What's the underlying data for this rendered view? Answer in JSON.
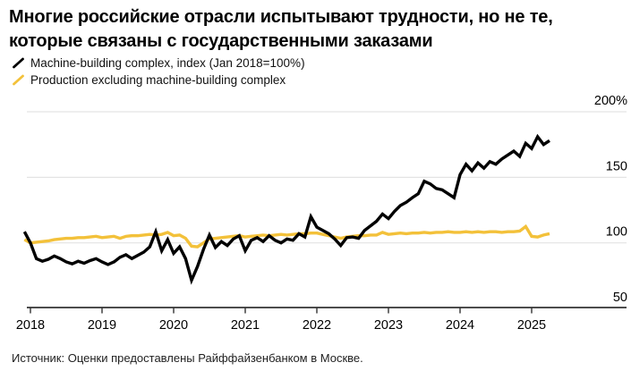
{
  "title": {
    "line1": "Многие российские отрасли испытывают трудности, но не те,",
    "line2": "которые связаны с государственными заказами"
  },
  "legend": {
    "items": [
      {
        "label": "Machine-building complex, index (Jan 2018=100%)",
        "color": "#000000"
      },
      {
        "label": "Production excluding machine-building complex",
        "color": "#F3C13A"
      }
    ]
  },
  "source": "Источник: Оценки предоставлены Райффайзенбанком в Москве.",
  "colors": {
    "black_line": "#000000",
    "yellow_line": "#F3C13A",
    "gridline": "#e3e3e3",
    "axis": "#333333",
    "text": "#000000"
  },
  "chart_data": {
    "type": "line",
    "title": "Многие российские отрасли испытывают трудности, но не те, которые связаны с государственными заказами",
    "x_unit": "month",
    "x_start": "2017-12",
    "x_end": "2025-04",
    "x_tick_labels": [
      "2018",
      "2019",
      "2020",
      "2021",
      "2022",
      "2023",
      "2024",
      "2025"
    ],
    "y_ticks": [
      {
        "label": "200%",
        "value": 200
      },
      {
        "label": "150",
        "value": 150
      },
      {
        "label": "100",
        "value": 100
      },
      {
        "label": "50",
        "value": 50
      }
    ],
    "ylim": [
      50,
      210
    ],
    "grid": "horizontal",
    "legend_position": "top-left",
    "series": [
      {
        "name": "Machine-building complex, index (Jan 2018=100%)",
        "color": "#000000",
        "values": [
          108.5,
          100,
          88,
          86,
          87.5,
          90,
          88,
          85.5,
          84,
          86,
          84.5,
          86.5,
          88,
          85.5,
          83.5,
          85.5,
          89,
          91,
          88,
          90.5,
          93,
          97,
          108.5,
          94,
          102.5,
          92,
          97,
          88,
          71.5,
          82,
          95,
          106,
          96.5,
          101,
          98,
          103,
          105.5,
          94,
          102,
          104,
          101,
          105.5,
          102,
          100,
          103,
          102,
          107,
          104.5,
          120,
          112,
          109.5,
          107,
          103,
          98,
          104,
          104.5,
          103.5,
          109.5,
          113,
          116.5,
          122,
          118.5,
          124,
          128.5,
          131,
          134.5,
          137.5,
          147,
          145,
          141.5,
          140.5,
          137.5,
          134.5,
          152,
          160,
          155,
          161,
          157,
          162,
          160,
          164,
          167,
          170,
          166,
          176,
          172,
          181,
          175,
          178
        ]
      },
      {
        "name": "Production excluding machine-building complex",
        "color": "#F3C13A",
        "values": [
          102.5,
          100,
          100.5,
          101,
          101.5,
          102.5,
          103,
          103.5,
          103.5,
          104,
          104,
          104.5,
          105,
          104,
          104.5,
          105,
          103.5,
          105,
          105.5,
          105.5,
          106,
          106.5,
          106,
          106.5,
          108,
          105.5,
          106,
          103.5,
          97.5,
          97,
          100,
          103,
          103.5,
          104,
          104.5,
          105,
          105.5,
          104.5,
          105,
          105.5,
          106,
          105.5,
          106,
          106.5,
          106,
          106.5,
          107,
          107,
          107.5,
          107.5,
          106.5,
          105.5,
          104.5,
          103.5,
          104.5,
          105,
          105.5,
          105.5,
          106,
          106,
          108,
          106.5,
          107,
          107.5,
          107,
          107.5,
          107.5,
          108,
          107.5,
          108,
          108,
          108.5,
          108,
          108,
          108.5,
          108,
          108.5,
          108,
          108.5,
          108.5,
          108,
          108.5,
          108.5,
          109,
          112.5,
          105,
          104.5,
          106,
          107
        ]
      }
    ]
  }
}
